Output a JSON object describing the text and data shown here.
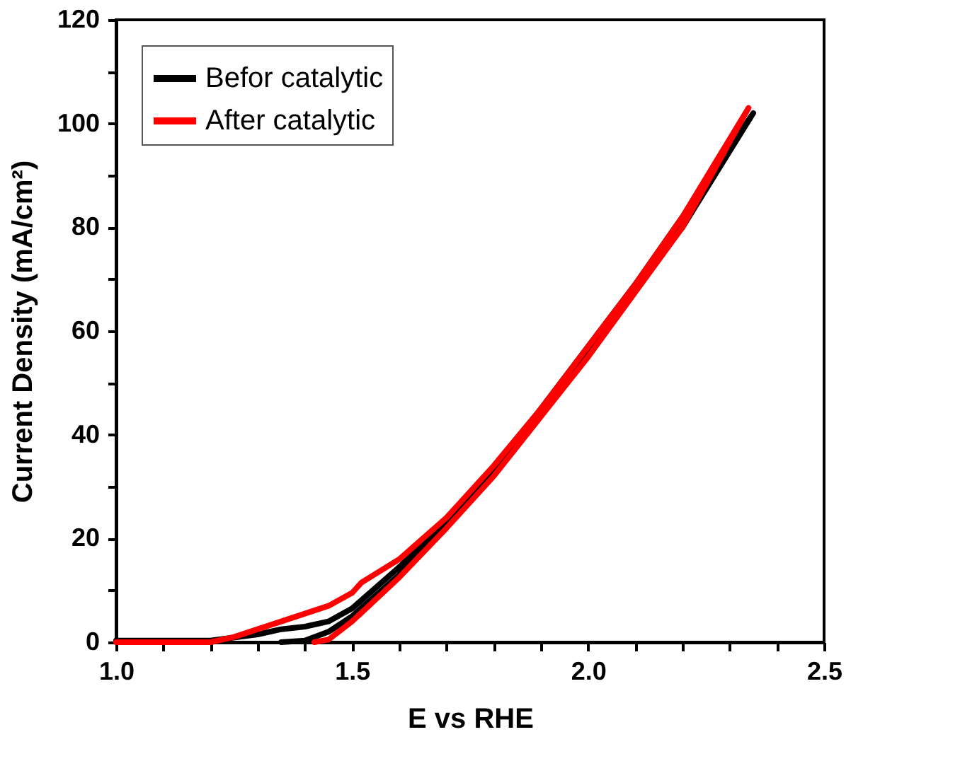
{
  "chart_data": {
    "type": "line",
    "xlabel": "E vs RHE",
    "ylabel": "Current Density    (mA/cm²)",
    "xlim": [
      1.0,
      2.5
    ],
    "ylim": [
      0,
      120
    ],
    "xticks": [
      {
        "value": 1.0,
        "label": "1.0"
      },
      {
        "value": 1.1,
        "label": null
      },
      {
        "value": 1.2,
        "label": null
      },
      {
        "value": 1.3,
        "label": null
      },
      {
        "value": 1.4,
        "label": null
      },
      {
        "value": 1.5,
        "label": "1.5"
      },
      {
        "value": 1.6,
        "label": null
      },
      {
        "value": 1.7,
        "label": null
      },
      {
        "value": 1.8,
        "label": null
      },
      {
        "value": 1.9,
        "label": null
      },
      {
        "value": 2.0,
        "label": "2.0"
      },
      {
        "value": 2.1,
        "label": null
      },
      {
        "value": 2.2,
        "label": null
      },
      {
        "value": 2.3,
        "label": null
      },
      {
        "value": 2.4,
        "label": null
      },
      {
        "value": 2.5,
        "label": "2.5"
      }
    ],
    "yticks": [
      0,
      {
        "value": 10,
        "label": null
      },
      20,
      {
        "value": 30,
        "label": null
      },
      40,
      {
        "value": 50,
        "label": null
      },
      60,
      {
        "value": 70,
        "label": null
      },
      80,
      {
        "value": 90,
        "label": null
      },
      100,
      {
        "value": 110,
        "label": null
      },
      120
    ],
    "legend": "top left",
    "grid": false,
    "line_style": "solid",
    "marker": "none",
    "series": [
      {
        "name": "Befor catalytic",
        "color": "#000000",
        "x": [
          1.0,
          1.2,
          1.3,
          1.35,
          1.4,
          1.45,
          1.5,
          1.55,
          1.6,
          1.7,
          1.8,
          1.9,
          2.0,
          2.1,
          2.2,
          2.35,
          2.2,
          2.0,
          1.8,
          1.6,
          1.5,
          1.45,
          1.4,
          1.35
        ],
        "values": [
          0.3,
          0.3,
          1.5,
          2.5,
          3,
          4,
          6.5,
          10.5,
          14.5,
          23,
          33,
          45,
          57,
          69,
          80,
          102,
          82,
          56,
          33,
          13,
          5,
          2,
          0.3,
          0
        ]
      },
      {
        "name": "After catalytic",
        "color": "#ff0000",
        "x": [
          1.0,
          1.2,
          1.25,
          1.3,
          1.35,
          1.4,
          1.45,
          1.5,
          1.52,
          1.6,
          1.7,
          1.8,
          1.9,
          2.0,
          2.1,
          2.2,
          2.34,
          2.2,
          2.0,
          1.8,
          1.7,
          1.6,
          1.5,
          1.45,
          1.42
        ],
        "values": [
          0,
          0,
          1,
          2.5,
          4,
          5.5,
          7,
          9.5,
          11.5,
          16,
          24,
          34,
          45,
          57,
          69,
          82,
          103,
          80,
          55,
          32,
          22,
          12.5,
          4,
          0.5,
          0
        ]
      }
    ]
  }
}
